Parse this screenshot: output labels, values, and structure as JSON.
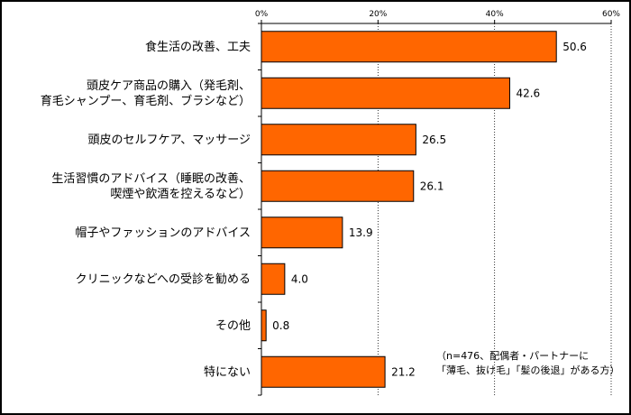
{
  "chart_data": {
    "type": "bar",
    "orientation": "horizontal",
    "categories": [
      [
        "食生活の改善、工夫"
      ],
      [
        "頭皮ケア商品の購入（発毛剤、",
        "育毛シャンプー、育毛剤、ブラシなど）"
      ],
      [
        "頭皮のセルフケア、マッサージ"
      ],
      [
        "生活習慣のアドバイス（睡眠の改善、",
        "喫煙や飲酒を控えるなど）"
      ],
      [
        "帽子やファッションのアドバイス"
      ],
      [
        "クリニックなどへの受診を勧める"
      ],
      [
        "その他"
      ],
      [
        "特にない"
      ]
    ],
    "values": [
      50.6,
      42.6,
      26.5,
      26.1,
      13.9,
      4.0,
      0.8,
      21.2
    ],
    "value_labels": [
      "50.6",
      "42.6",
      "26.5",
      "26.1",
      "13.9",
      "4.0",
      "0.8",
      "21.2"
    ],
    "xlim": [
      0,
      60
    ],
    "ticks": [
      0,
      20,
      40,
      60
    ],
    "tick_labels": [
      "0%",
      "20%",
      "40%",
      "60%"
    ],
    "bar_color": "#FF6600",
    "bar_edge_color": "#000000",
    "grid": true,
    "note": [
      "（n=476、配偶者・パートナーに",
      "「薄毛、抜け毛」「髪の後退」がある方）"
    ]
  }
}
